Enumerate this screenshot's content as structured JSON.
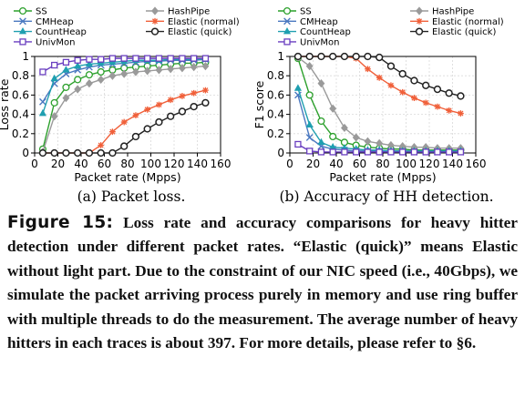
{
  "colors": {
    "SS": "#2ca02c",
    "HashPipe": "#9a9a9a",
    "CMHeap": "#4a78c0",
    "Elastic (normal)": "#f0603a",
    "CountHeap": "#1f9fb0",
    "Elastic (quick)": "#222222",
    "UnivMon": "#6a3fc0"
  },
  "markers": {
    "SS": "circle-open",
    "HashPipe": "diamond",
    "CMHeap": "x",
    "Elastic (normal)": "asterisk",
    "CountHeap": "triangle",
    "Elastic (quick)": "circle-dark",
    "UnivMon": "square-open"
  },
  "chart_data": [
    {
      "type": "line",
      "xlabel": "Packet rate (Mpps)",
      "ylabel": "Loss rate",
      "caption": "(a)  Packet loss.",
      "xlim": [
        0,
        160
      ],
      "ylim": [
        0,
        1
      ],
      "xticks": [
        0,
        20,
        40,
        60,
        80,
        100,
        120,
        140,
        160
      ],
      "yticks": [
        0,
        0.2,
        0.4,
        0.6,
        0.8,
        1
      ],
      "xtick_labels": [
        "0",
        "20",
        "40",
        "60",
        "80",
        "100",
        "120",
        "140",
        "160"
      ],
      "ytick_labels": [
        "0",
        "0.2",
        "0.4",
        "0.6",
        "0.8",
        "1"
      ],
      "grid": true,
      "legend_position": "above",
      "x": [
        7,
        17,
        27,
        37,
        47,
        57,
        67,
        77,
        87,
        97,
        107,
        117,
        127,
        137,
        147
      ],
      "series": [
        {
          "name": "SS",
          "values": [
            0.04,
            0.52,
            0.68,
            0.76,
            0.81,
            0.84,
            0.86,
            0.88,
            0.89,
            0.9,
            0.91,
            0.92,
            0.93,
            0.93,
            0.94
          ]
        },
        {
          "name": "HashPipe",
          "values": [
            0.01,
            0.38,
            0.57,
            0.66,
            0.72,
            0.76,
            0.8,
            0.82,
            0.84,
            0.85,
            0.86,
            0.87,
            0.88,
            0.89,
            0.9
          ]
        },
        {
          "name": "CMHeap",
          "values": [
            0.53,
            0.72,
            0.82,
            0.86,
            0.89,
            0.91,
            0.92,
            0.93,
            0.94,
            0.95,
            0.95,
            0.96,
            0.96,
            0.96,
            0.97
          ]
        },
        {
          "name": "Elastic (normal)",
          "values": [
            0,
            0,
            0,
            0,
            0,
            0.08,
            0.22,
            0.32,
            0.39,
            0.45,
            0.5,
            0.55,
            0.59,
            0.62,
            0.65
          ]
        },
        {
          "name": "CountHeap",
          "values": [
            0.41,
            0.77,
            0.86,
            0.9,
            0.92,
            0.93,
            0.94,
            0.95,
            0.96,
            0.96,
            0.96,
            0.97,
            0.97,
            0.97,
            0.97
          ]
        },
        {
          "name": "Elastic (quick)",
          "values": [
            0,
            0,
            0,
            0,
            0,
            0,
            0,
            0.07,
            0.17,
            0.25,
            0.32,
            0.38,
            0.43,
            0.48,
            0.52
          ]
        },
        {
          "name": "UnivMon",
          "values": [
            0.84,
            0.91,
            0.94,
            0.96,
            0.97,
            0.97,
            0.98,
            0.98,
            0.98,
            0.98,
            0.98,
            0.98,
            0.98,
            0.98,
            0.98
          ]
        }
      ]
    },
    {
      "type": "line",
      "xlabel": "Packet rate (Mpps)",
      "ylabel": "F1 score",
      "caption": "(b)  Accuracy of HH detection.",
      "xlim": [
        0,
        160
      ],
      "ylim": [
        0,
        1
      ],
      "xticks": [
        0,
        20,
        40,
        60,
        80,
        100,
        120,
        140,
        160
      ],
      "yticks": [
        0,
        0.2,
        0.4,
        0.6,
        0.8,
        1
      ],
      "xtick_labels": [
        "0",
        "20",
        "40",
        "60",
        "80",
        "100",
        "120",
        "140",
        "160"
      ],
      "ytick_labels": [
        "0",
        "0.2",
        "0.4",
        "0.6",
        "0.8",
        "1"
      ],
      "grid": true,
      "legend_position": "above",
      "x": [
        7,
        17,
        27,
        37,
        47,
        57,
        67,
        77,
        87,
        97,
        107,
        117,
        127,
        137,
        147
      ],
      "series": [
        {
          "name": "SS",
          "values": [
            0.98,
            0.6,
            0.33,
            0.17,
            0.11,
            0.08,
            0.06,
            0.05,
            0.04,
            0.04,
            0.03,
            0.03,
            0.03,
            0.03,
            0.03
          ]
        },
        {
          "name": "HashPipe",
          "values": [
            0.99,
            0.9,
            0.72,
            0.46,
            0.26,
            0.16,
            0.12,
            0.1,
            0.08,
            0.07,
            0.06,
            0.06,
            0.05,
            0.05,
            0.05
          ]
        },
        {
          "name": "CMHeap",
          "values": [
            0.6,
            0.16,
            0.07,
            0.04,
            0.03,
            0.02,
            0.02,
            0.02,
            0.02,
            0.02,
            0.01,
            0.01,
            0.01,
            0.01,
            0.01
          ]
        },
        {
          "name": "Elastic (normal)",
          "values": [
            1,
            1,
            1,
            1,
            1,
            0.98,
            0.87,
            0.78,
            0.7,
            0.63,
            0.57,
            0.52,
            0.48,
            0.44,
            0.41
          ]
        },
        {
          "name": "CountHeap",
          "values": [
            0.67,
            0.29,
            0.11,
            0.06,
            0.05,
            0.04,
            0.03,
            0.03,
            0.02,
            0.02,
            0.02,
            0.02,
            0.02,
            0.02,
            0.02
          ]
        },
        {
          "name": "Elastic (quick)",
          "values": [
            1,
            1,
            1,
            1,
            1,
            1,
            1,
            0.99,
            0.9,
            0.82,
            0.75,
            0.7,
            0.66,
            0.62,
            0.59
          ]
        },
        {
          "name": "UnivMon",
          "values": [
            0.09,
            0.02,
            0.01,
            0.01,
            0.01,
            0.01,
            0.01,
            0.01,
            0.01,
            0.01,
            0.01,
            0.01,
            0.01,
            0.01,
            0.01
          ]
        }
      ]
    }
  ],
  "caption": {
    "label": "Figure 15:",
    "text": "Loss rate and accuracy comparisons for heavy hitter detection under different packet rates. “Elastic (quick)” means Elastic without light part. Due to the constraint of our NIC speed (i.e., 40Gbps), we simulate the packet arriving process purely in memory and use ring buffer with multiple threads to do the measurement. The average number of heavy hitters in each traces is about 397. For more details, please refer to §6."
  }
}
